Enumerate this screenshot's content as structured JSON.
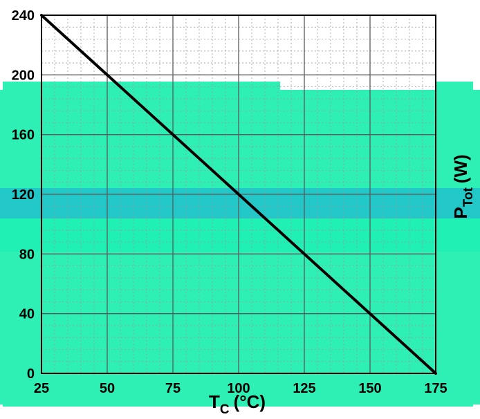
{
  "colors": {
    "background": "#ffffff",
    "overlay": "#2ef0b4",
    "overlay_band_dark": "#22c8c8",
    "overlay_band_light": "#20f0b4",
    "grid_major": "#5a5a5a",
    "grid_minor": "#9a9a9a",
    "line": "#000000",
    "text": "#000000"
  },
  "chart_data": {
    "type": "line",
    "title": "",
    "xlabel": "T",
    "xlabel_sub": "C",
    "xlabel_unit": "(°C)",
    "ylabel": "P",
    "ylabel_sub": "Tot",
    "ylabel_unit": "(W)",
    "xlim": [
      25,
      175
    ],
    "ylim": [
      0,
      240
    ],
    "x_ticks": [
      25,
      50,
      75,
      100,
      125,
      150,
      175
    ],
    "y_ticks": [
      0,
      40,
      80,
      120,
      160,
      200,
      240
    ],
    "x_tick_labels": [
      "25",
      "50",
      "75",
      "100",
      "125",
      "150",
      "175"
    ],
    "y_tick_labels": [
      "0",
      "40",
      "80",
      "120",
      "160",
      "200",
      "240"
    ],
    "grid": true,
    "minor_grid": true,
    "series": [
      {
        "x": [
          25,
          175
        ],
        "y": [
          240,
          0
        ]
      }
    ]
  }
}
